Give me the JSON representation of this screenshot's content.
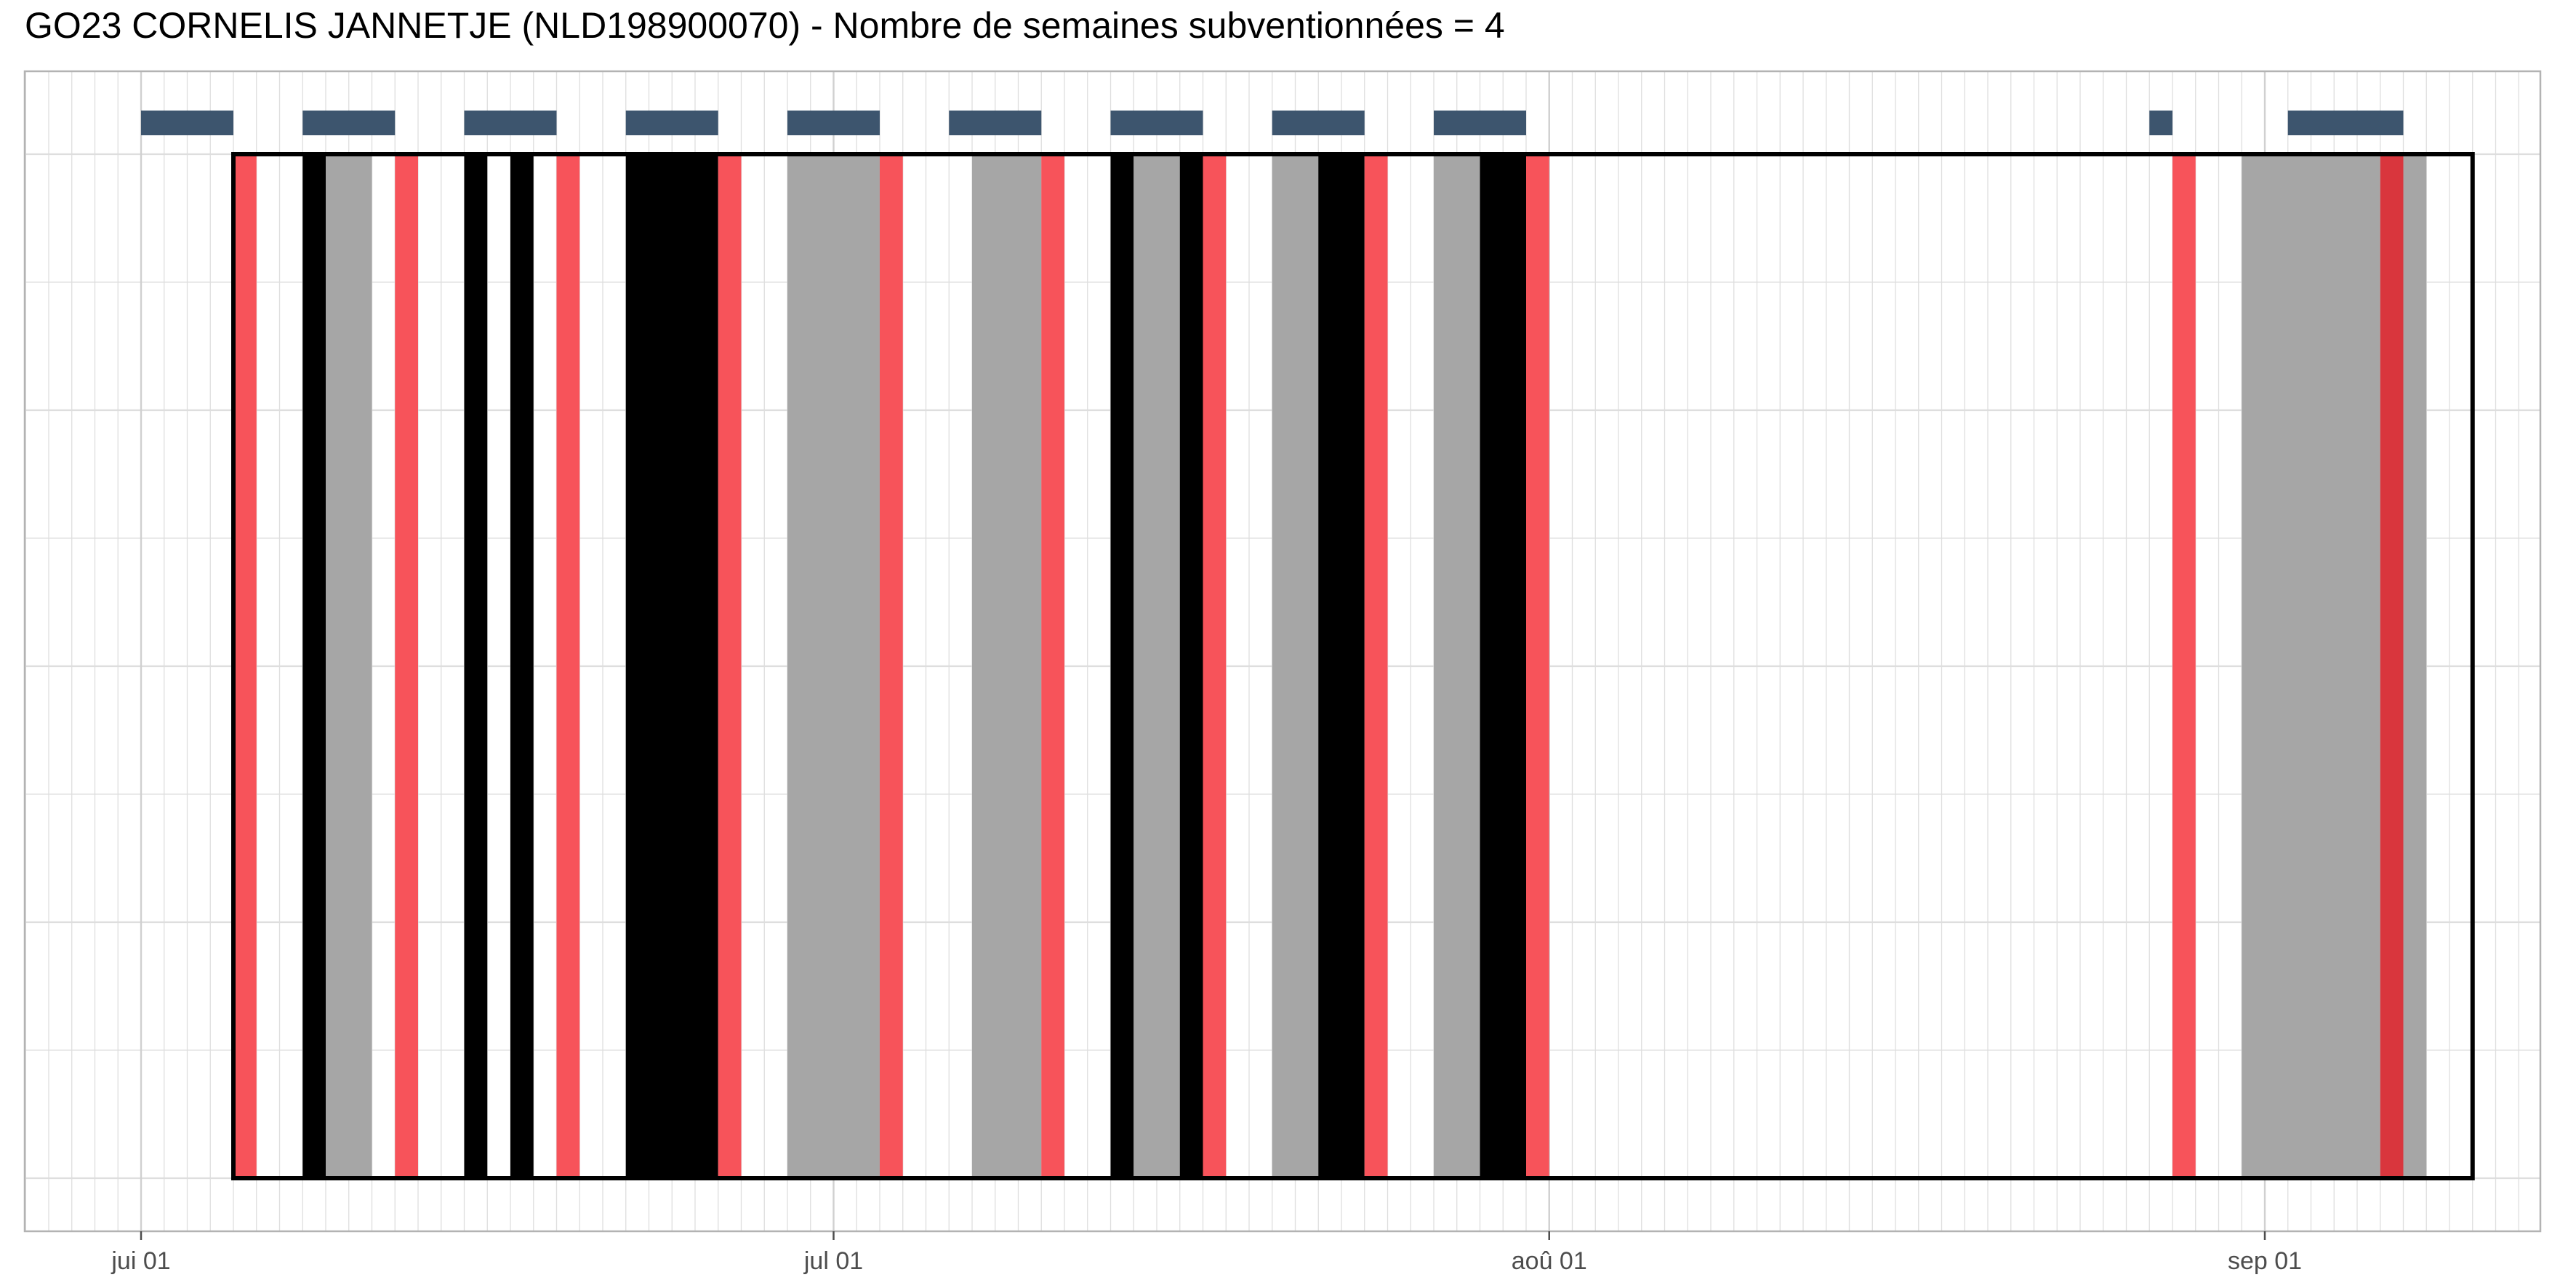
{
  "chart_data": {
    "type": "timeline",
    "title": "GO23 CORNELIS JANNETJE (NLD198900070) - Nombre de semaines subventionnées = 4",
    "year": 2023,
    "x_tick_labels": [
      {
        "date": "2023-06-01",
        "label": "jui 01"
      },
      {
        "date": "2023-07-01",
        "label": "jul 01"
      },
      {
        "date": "2023-08-01",
        "label": "aoû 01"
      },
      {
        "date": "2023-09-01",
        "label": "sep 01"
      }
    ],
    "xlim": [
      "2023-05-27",
      "2023-09-29"
    ],
    "grid": true,
    "colors": {
      "week_bar": "#3d556e",
      "black_segment": "#000000",
      "gray_segment": "#a6a6a6",
      "red_segment": "#f7535a",
      "dark_red_segment": "#d9363d",
      "period_outline": "#000000",
      "grid": "#dedede",
      "panel_border": "#b3b3b3"
    },
    "period": {
      "start": "2023-06-05",
      "end": "2023-09-10"
    },
    "week_bars": [
      {
        "start": "2023-06-01",
        "end": "2023-06-05"
      },
      {
        "start": "2023-06-08",
        "end": "2023-06-12"
      },
      {
        "start": "2023-06-15",
        "end": "2023-06-19"
      },
      {
        "start": "2023-06-22",
        "end": "2023-06-26"
      },
      {
        "start": "2023-06-29",
        "end": "2023-07-03"
      },
      {
        "start": "2023-07-06",
        "end": "2023-07-10"
      },
      {
        "start": "2023-07-13",
        "end": "2023-07-17"
      },
      {
        "start": "2023-07-20",
        "end": "2023-07-24"
      },
      {
        "start": "2023-07-27",
        "end": "2023-07-31"
      },
      {
        "start": "2023-08-27",
        "end": "2023-08-28"
      },
      {
        "start": "2023-09-02",
        "end": "2023-09-07"
      }
    ],
    "segments": [
      {
        "start": "2023-06-05",
        "end": "2023-06-06",
        "color": "red"
      },
      {
        "start": "2023-06-08",
        "end": "2023-06-09",
        "color": "black"
      },
      {
        "start": "2023-06-09",
        "end": "2023-06-11",
        "color": "gray"
      },
      {
        "start": "2023-06-12",
        "end": "2023-06-13",
        "color": "red"
      },
      {
        "start": "2023-06-15",
        "end": "2023-06-16",
        "color": "black"
      },
      {
        "start": "2023-06-17",
        "end": "2023-06-18",
        "color": "black"
      },
      {
        "start": "2023-06-19",
        "end": "2023-06-20",
        "color": "red"
      },
      {
        "start": "2023-06-22",
        "end": "2023-06-26",
        "color": "black"
      },
      {
        "start": "2023-06-26",
        "end": "2023-06-27",
        "color": "red"
      },
      {
        "start": "2023-06-29",
        "end": "2023-07-03",
        "color": "gray"
      },
      {
        "start": "2023-07-03",
        "end": "2023-07-04",
        "color": "red"
      },
      {
        "start": "2023-07-07",
        "end": "2023-07-10",
        "color": "gray"
      },
      {
        "start": "2023-07-10",
        "end": "2023-07-11",
        "color": "red"
      },
      {
        "start": "2023-07-13",
        "end": "2023-07-14",
        "color": "black"
      },
      {
        "start": "2023-07-14",
        "end": "2023-07-16",
        "color": "gray"
      },
      {
        "start": "2023-07-16",
        "end": "2023-07-17",
        "color": "black"
      },
      {
        "start": "2023-07-17",
        "end": "2023-07-18",
        "color": "red"
      },
      {
        "start": "2023-07-20",
        "end": "2023-07-22",
        "color": "gray"
      },
      {
        "start": "2023-07-22",
        "end": "2023-07-24",
        "color": "black"
      },
      {
        "start": "2023-07-24",
        "end": "2023-07-25",
        "color": "red"
      },
      {
        "start": "2023-07-27",
        "end": "2023-07-29",
        "color": "gray"
      },
      {
        "start": "2023-07-29",
        "end": "2023-07-31",
        "color": "black"
      },
      {
        "start": "2023-07-31",
        "end": "2023-08-01",
        "color": "red"
      },
      {
        "start": "2023-08-28",
        "end": "2023-08-29",
        "color": "red"
      },
      {
        "start": "2023-08-31",
        "end": "2023-09-05",
        "color": "gray"
      },
      {
        "start": "2023-09-05",
        "end": "2023-09-06",
        "color": "gray"
      },
      {
        "start": "2023-09-06",
        "end": "2023-09-07",
        "color": "dark_red"
      },
      {
        "start": "2023-09-07",
        "end": "2023-09-08",
        "color": "gray"
      }
    ]
  }
}
